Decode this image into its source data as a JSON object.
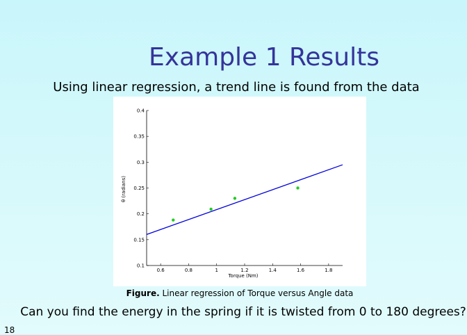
{
  "slide": {
    "title": "Example 1 Results",
    "subtitle": "Using linear regression, a trend line is found from the data",
    "caption_label": "Figure.",
    "caption_text": " Linear regression of Torque versus Angle data",
    "question": "Can you find the energy in the spring if it is twisted from 0 to 180 degrees?",
    "slide_number": "18"
  },
  "colors": {
    "title": "#34349a",
    "trend_line": "#0000dd",
    "points": "#22cc22"
  },
  "chart_data": {
    "type": "scatter",
    "xlabel": "Torque (Nm)",
    "ylabel": "θ (radians)",
    "xlim": [
      0.5,
      1.9
    ],
    "ylim": [
      0.1,
      0.4
    ],
    "xticks": [
      0.6,
      0.8,
      1,
      1.2,
      1.4,
      1.6,
      1.8
    ],
    "xtick_labels": [
      "0.6",
      "0.8",
      "1",
      "1.2",
      "1.4",
      "1.6",
      "1.8"
    ],
    "yticks": [
      0.1,
      0.15,
      0.2,
      0.25,
      0.3,
      0.35,
      0.4
    ],
    "ytick_labels": [
      "0.1",
      "0.15",
      "0.2",
      "0.25",
      "0.3",
      "0.35",
      "0.4"
    ],
    "points": [
      {
        "x": 0.69,
        "y": 0.188
      },
      {
        "x": 0.96,
        "y": 0.209
      },
      {
        "x": 1.13,
        "y": 0.23
      },
      {
        "x": 1.58,
        "y": 0.25
      }
    ],
    "trend_line": {
      "x": [
        0.5,
        1.9
      ],
      "y": [
        0.16,
        0.295
      ]
    },
    "grid": false
  }
}
